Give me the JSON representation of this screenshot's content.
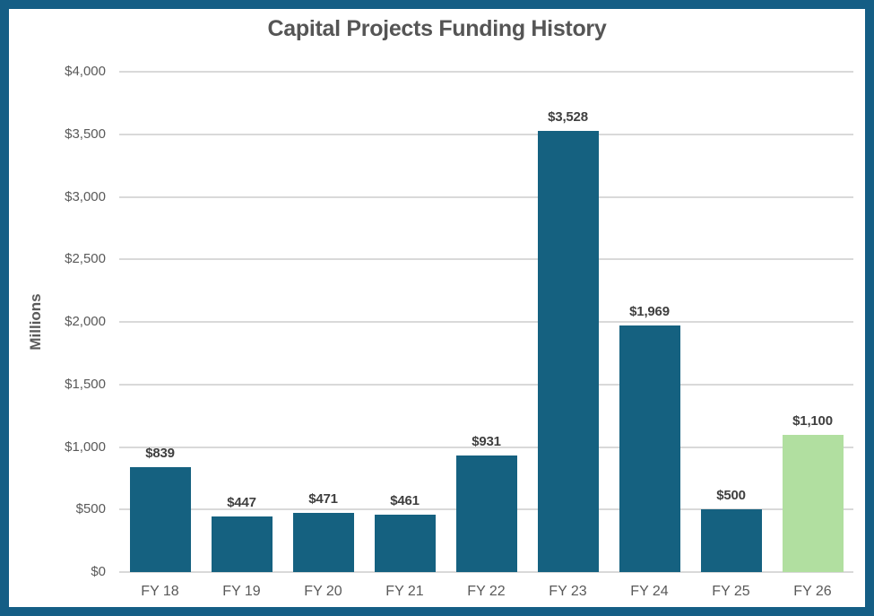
{
  "chart_data": {
    "type": "bar",
    "title": "Capital Projects Funding History",
    "ylabel": "Millions",
    "xlabel": "",
    "categories": [
      "FY 18",
      "FY 19",
      "FY 20",
      "FY 21",
      "FY 22",
      "FY 23",
      "FY 24",
      "FY 25",
      "FY 26"
    ],
    "values": [
      839,
      447,
      471,
      461,
      931,
      3528,
      1969,
      500,
      1100
    ],
    "value_labels": [
      "$839",
      "$447",
      "$471",
      "$461",
      "$931",
      "$3,528",
      "$1,969",
      "$500",
      "$1,100"
    ],
    "ylim": [
      0,
      4000
    ],
    "ytick_step": 500,
    "ytick_labels": [
      "$0",
      "$500",
      "$1,000",
      "$1,500",
      "$2,000",
      "$2,500",
      "$3,000",
      "$3,500",
      "$4,000"
    ],
    "grid": true,
    "legend": "none",
    "colors": {
      "bar": "#156180",
      "highlight_bar": "#B1DFA0",
      "border": "#155E85",
      "gridline": "#D9D9D9",
      "axis_text": "#595959",
      "data_label": "#3F3F3F",
      "title_text": "#555555"
    },
    "highlight_index": 8
  }
}
